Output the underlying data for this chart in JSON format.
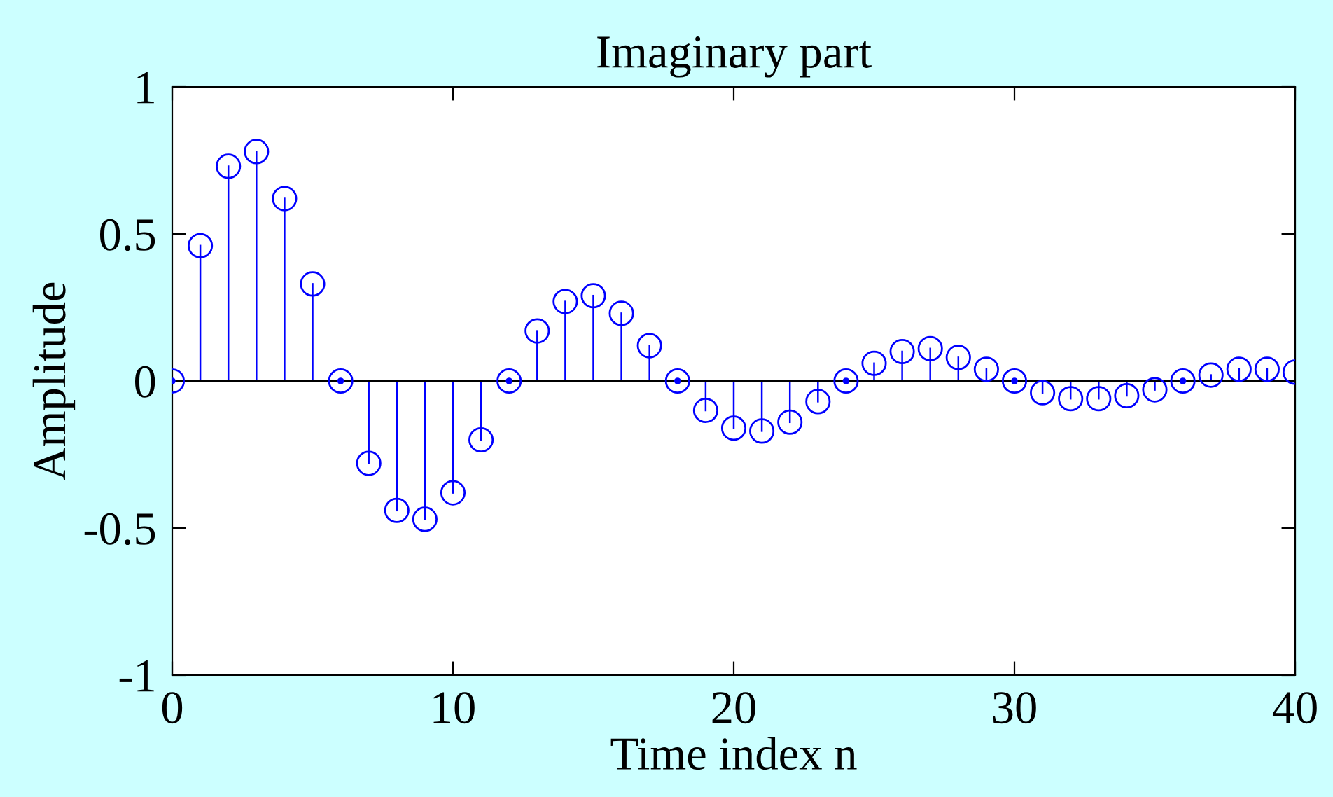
{
  "chart_data": {
    "type": "lollipop",
    "title": "Imaginary part",
    "xlabel": "Time index n",
    "ylabel": "Amplitude",
    "x": [
      0,
      1,
      2,
      3,
      4,
      5,
      6,
      7,
      8,
      9,
      10,
      11,
      12,
      13,
      14,
      15,
      16,
      17,
      18,
      19,
      20,
      21,
      22,
      23,
      24,
      25,
      26,
      27,
      28,
      29,
      30,
      31,
      32,
      33,
      34,
      35,
      36,
      37,
      38,
      39,
      40
    ],
    "series": [
      {
        "color": "#0000ff",
        "values": [
          0,
          0.46,
          0.73,
          0.78,
          0.62,
          0.33,
          0,
          -0.28,
          -0.44,
          -0.47,
          -0.38,
          -0.2,
          0,
          0.17,
          0.27,
          0.29,
          0.23,
          0.12,
          0,
          -0.1,
          -0.16,
          -0.17,
          -0.14,
          -0.07,
          0,
          0.06,
          0.1,
          0.11,
          0.08,
          0.04,
          0,
          -0.04,
          -0.06,
          -0.06,
          -0.05,
          -0.03,
          0,
          0.02,
          0.04,
          0.04,
          0.03
        ]
      }
    ],
    "xlim": [
      0,
      40
    ],
    "xticks": [
      0,
      10,
      20,
      30,
      40
    ],
    "ylim": [
      -1,
      1
    ],
    "yticks": [
      -1,
      -0.5,
      0,
      0.5,
      1
    ],
    "ref_lines": [
      {
        "axis": "y",
        "value": 0,
        "color": "#000000"
      }
    ],
    "marker": "circle",
    "grid": false,
    "legend": false
  }
}
